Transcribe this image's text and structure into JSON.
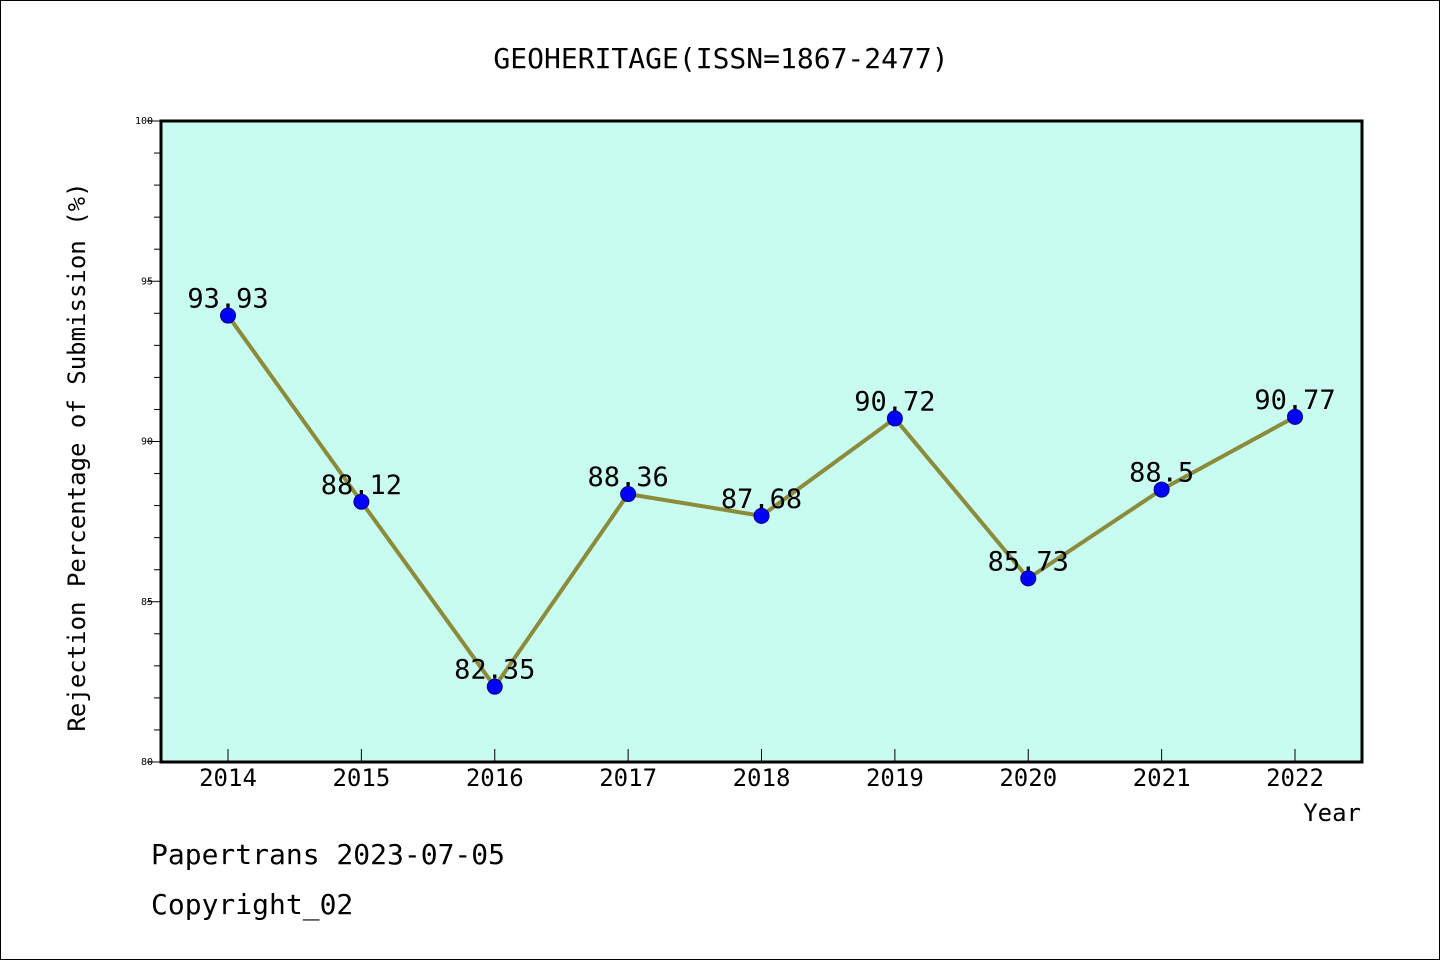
{
  "chart_data": {
    "type": "line",
    "title": "GEOHERITAGE(ISSN=1867-2477)",
    "xlabel": "Year",
    "ylabel": "Rejection Percentage of Submission (%)",
    "x": [
      "2014",
      "2015",
      "2016",
      "2017",
      "2018",
      "2019",
      "2020",
      "2021",
      "2022"
    ],
    "series": [
      {
        "values": [
          93.93,
          88.12,
          82.35,
          88.36,
          87.68,
          90.72,
          85.73,
          88.5,
          90.77
        ],
        "labels": [
          "93.93",
          "88.12",
          "82.35",
          "88.36",
          "87.68",
          "90.72",
          "85.73",
          "88.5",
          "90.77"
        ],
        "line_color": "#8b8b3a",
        "marker_color": "#0000ff"
      }
    ],
    "ylim": [
      80,
      100
    ],
    "yticks": [
      "80",
      "85",
      "90",
      "95",
      "100"
    ],
    "grid": false,
    "plot_background": "#c8fcf0"
  },
  "footer": {
    "line1": "Papertrans 2023-07-05",
    "line2": "Copyright_02"
  }
}
